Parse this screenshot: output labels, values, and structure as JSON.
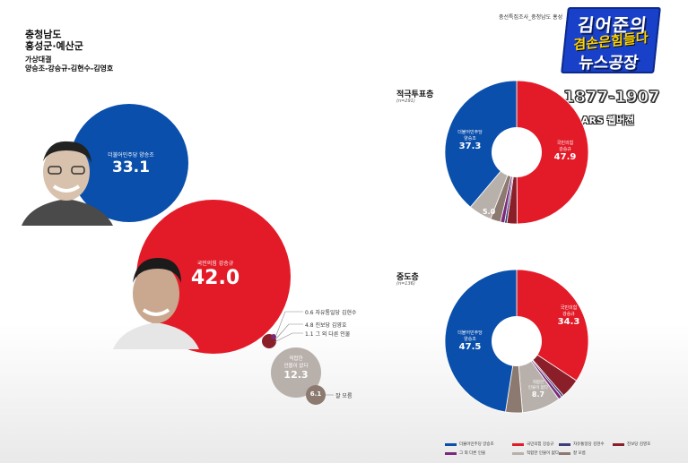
{
  "region": {
    "line1": "충청남도",
    "line2": "홍성군·예산군"
  },
  "matchup": {
    "title": "가상대결",
    "candidates": "양승조-강승규-김현수-김영호"
  },
  "source": "충선특집조사_충청남도 홍성",
  "logo": {
    "line1": "김어준의",
    "line2": "겸손은힘들다",
    "line3": "뉴스공장"
  },
  "date_range": "1877-1907",
  "method": "ARS 웹버젼",
  "colors": {
    "blue": "#0a4fab",
    "red": "#e31b28",
    "navy": "#3a3f7a",
    "purple": "#7a2a7a",
    "maroon": "#8a1f2a",
    "grey": "#b8b0ab",
    "taupe": "#8c7a70"
  },
  "main": {
    "blue_label": "더불어민주당 양승조",
    "blue_value": "33.1",
    "red_label": "국민의힘 강승규",
    "red_value": "42.0",
    "minor1": "0.6 자유통일당 김현수",
    "minor2": "4.8 진보당 김영호",
    "minor3": "1.1 그 외 다른 인물",
    "none_label1": "적합한",
    "none_label2": "인물이 없다",
    "none_value": "12.3",
    "dk_value": "6.1",
    "dk_label": "잘 모름"
  },
  "chart_data": [
    {
      "type": "bubble",
      "categories": [
        "더불어민주당 양승조",
        "국민의힘 강승규",
        "자유통일당 김현수",
        "진보당 김영호",
        "그 외 다른 인물",
        "적합한 인물이 없다",
        "잘 모름"
      ],
      "values": [
        33.1,
        42.0,
        0.6,
        4.8,
        1.1,
        12.3,
        6.1
      ]
    },
    {
      "type": "pie",
      "title": "적극투표층",
      "n_label": "(n=291)",
      "categories": [
        "국민의힘 강승규",
        "진보당 김영호",
        "자유통일당 김현수",
        "그 외 다른 인물",
        "잘 모름",
        "적합한 인물이 없다",
        "더불어민주당 양승조"
      ],
      "values": [
        47.9,
        2.2,
        0.5,
        0.9,
        2.2,
        5.0,
        37.3
      ],
      "labels": {
        "red": "국민의힘\n강승규",
        "red_value": "47.9",
        "blue": "더불어민주당\n양승조",
        "blue_value": "37.3",
        "none_value": "5.0"
      }
    },
    {
      "type": "pie",
      "title": "중도층",
      "n_label": "(n=136)",
      "categories": [
        "국민의힘 강승규",
        "진보당 김영호",
        "자유통일당 김현수",
        "그 외 다른 인물",
        "적합한 인물이 없다",
        "잘 모름",
        "더불어민주당 양승조"
      ],
      "values": [
        34.3,
        4.4,
        0.5,
        0.8,
        8.7,
        3.8,
        47.5
      ],
      "labels": {
        "red_value": "34.3",
        "blue_value": "47.5",
        "none_value": "8.7"
      }
    }
  ],
  "pie1": {
    "title": "적극투표층",
    "n": "(n=291)",
    "red_l1": "국민의힘",
    "red_l2": "강승규",
    "red_v": "47.9",
    "blue_l1": "더불어민주당",
    "blue_l2": "양승조",
    "blue_v": "37.3",
    "grey_v": "5.0"
  },
  "pie2": {
    "title": "중도층",
    "n": "(n=136)",
    "red_l1": "국민의힘",
    "red_l2": "강승규",
    "red_v": "34.3",
    "blue_l1": "더불어민주당",
    "blue_l2": "양승조",
    "blue_v": "47.5",
    "grey_l1": "적합한",
    "grey_l2": "인물이 없다",
    "grey_v": "8.7"
  },
  "legend": [
    {
      "label": "더불어민주당 양승조",
      "color": "#0a4fab"
    },
    {
      "label": "국민의힘 강승규",
      "color": "#e31b28"
    },
    {
      "label": "자유통일당 김현수",
      "color": "#3a3f7a"
    },
    {
      "label": "진보당 김영호",
      "color": "#8a1f2a"
    },
    {
      "label": "그 외 다른 인물",
      "color": "#7a2a7a"
    },
    {
      "label": "적합한 인물이 없다",
      "color": "#b8b0ab"
    },
    {
      "label": "잘 모름",
      "color": "#8c7a70"
    }
  ]
}
